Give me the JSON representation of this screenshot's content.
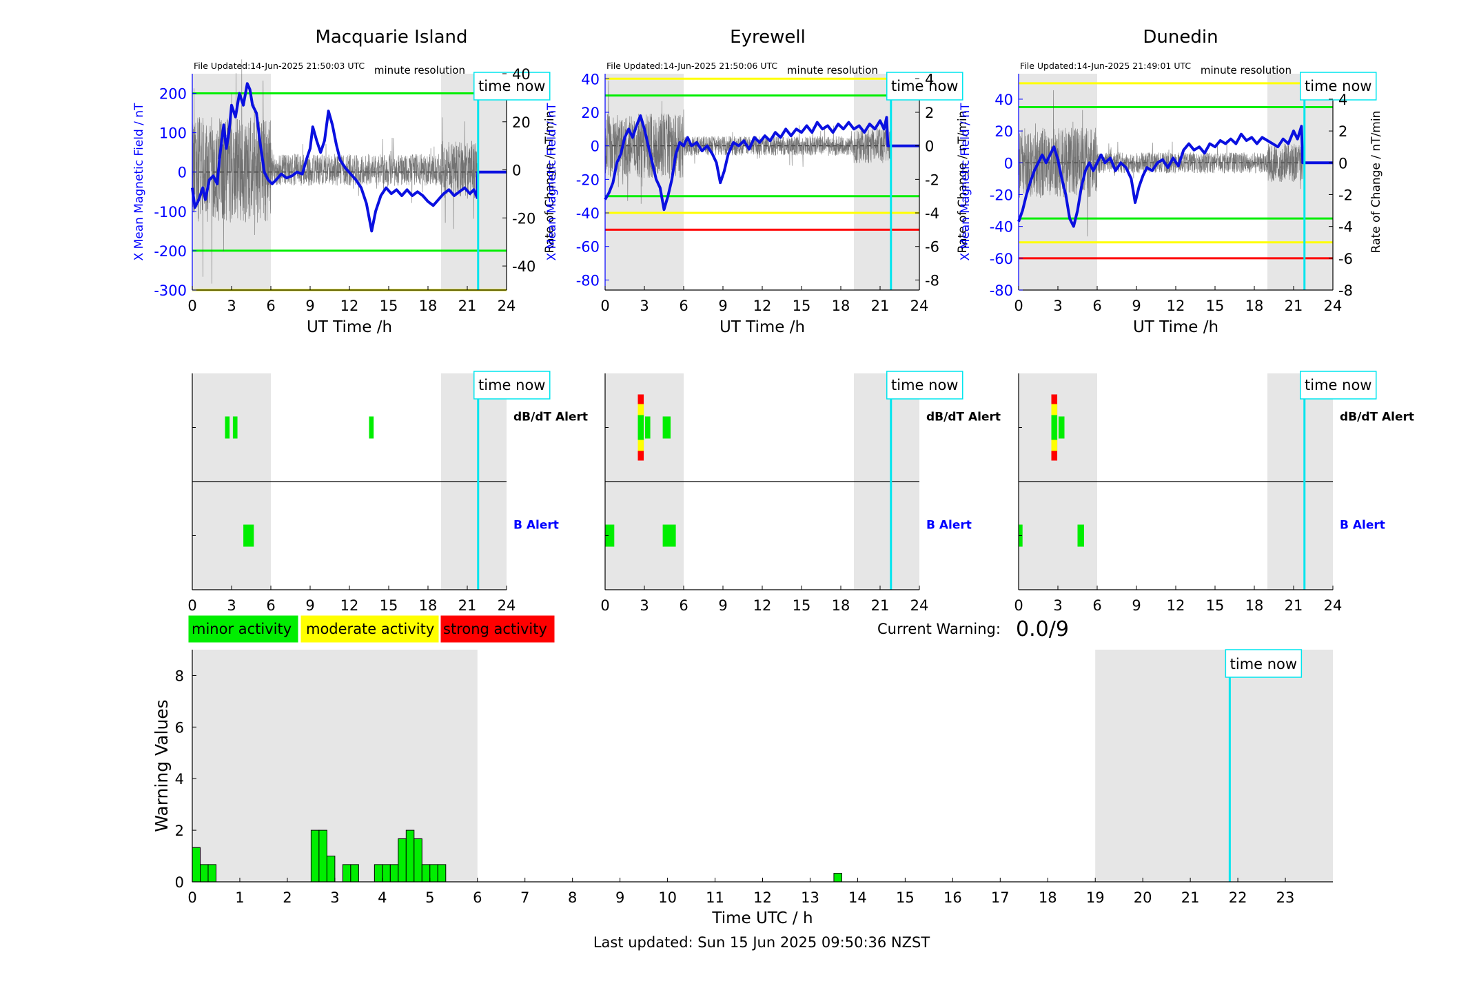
{
  "colors": {
    "shade": "#e6e6e6",
    "field": "#0a10e0",
    "rate": "#555555",
    "minor": "#00ee00",
    "moderate": "#ffff00",
    "strong": "#ff0000",
    "now": "#00e5ee",
    "axis_blue": "#0000ff",
    "zero_line": "#000000"
  },
  "now_hour": 21.83,
  "shaded_hours": [
    [
      0,
      6
    ],
    [
      19,
      24
    ]
  ],
  "chart_data": [
    {
      "type": "line",
      "id": "macquarie",
      "title": "Macquarie Island",
      "file_updated": "File Updated:14-Jun-2025 21:50:03 UTC",
      "resolution": "minute resolution",
      "time_now_label": "time now",
      "xlabel": "UT Time /h",
      "ylabel_left": "X Mean Magnetic Field / nT",
      "ylabel_right": "Rate of Change / nT/min",
      "xlim": [
        0,
        24
      ],
      "xticks": [
        "0",
        "3",
        "6",
        "9",
        "12",
        "15",
        "18",
        "21",
        "24"
      ],
      "ylim_left": [
        -300,
        250
      ],
      "yticks_left": [
        "200",
        "100",
        "0",
        "-100",
        "-200",
        "-300"
      ],
      "yticks_left_values": [
        200,
        100,
        0,
        -100,
        -200,
        -300
      ],
      "ylim_right": [
        -50,
        40
      ],
      "yticks_right": [
        "40",
        "20",
        "0",
        "-20",
        "-40"
      ],
      "yticks_right_values": [
        40,
        20,
        0,
        -20,
        -40
      ],
      "thresholds": [
        {
          "value": 200,
          "level": "minor"
        },
        {
          "value": -200,
          "level": "minor"
        },
        {
          "value": -300,
          "level": "moderate"
        }
      ],
      "field_series": [
        [
          0,
          -40
        ],
        [
          0.2,
          -90
        ],
        [
          0.5,
          -70
        ],
        [
          0.8,
          -40
        ],
        [
          1.0,
          -70
        ],
        [
          1.3,
          -20
        ],
        [
          1.6,
          -10
        ],
        [
          1.9,
          -30
        ],
        [
          2.1,
          40
        ],
        [
          2.4,
          120
        ],
        [
          2.6,
          60
        ],
        [
          2.8,
          100
        ],
        [
          3.0,
          170
        ],
        [
          3.3,
          140
        ],
        [
          3.6,
          200
        ],
        [
          3.9,
          170
        ],
        [
          4.2,
          225
        ],
        [
          4.4,
          210
        ],
        [
          4.6,
          170
        ],
        [
          4.9,
          150
        ],
        [
          5.2,
          70
        ],
        [
          5.5,
          0
        ],
        [
          5.8,
          -20
        ],
        [
          6.1,
          -30
        ],
        [
          6.4,
          -20
        ],
        [
          6.8,
          -5
        ],
        [
          7.2,
          -15
        ],
        [
          7.6,
          -10
        ],
        [
          8.0,
          0
        ],
        [
          8.4,
          -5
        ],
        [
          8.7,
          30
        ],
        [
          9.0,
          60
        ],
        [
          9.2,
          115
        ],
        [
          9.5,
          80
        ],
        [
          9.8,
          50
        ],
        [
          10.1,
          80
        ],
        [
          10.4,
          155
        ],
        [
          10.7,
          120
        ],
        [
          11.0,
          70
        ],
        [
          11.3,
          30
        ],
        [
          11.7,
          10
        ],
        [
          12.1,
          -5
        ],
        [
          12.5,
          -20
        ],
        [
          12.9,
          -40
        ],
        [
          13.3,
          -80
        ],
        [
          13.7,
          -150
        ],
        [
          14.0,
          -100
        ],
        [
          14.4,
          -60
        ],
        [
          14.8,
          -40
        ],
        [
          15.2,
          -55
        ],
        [
          15.6,
          -45
        ],
        [
          16.0,
          -60
        ],
        [
          16.4,
          -45
        ],
        [
          16.8,
          -60
        ],
        [
          17.2,
          -50
        ],
        [
          17.6,
          -60
        ],
        [
          18.0,
          -75
        ],
        [
          18.4,
          -85
        ],
        [
          18.8,
          -70
        ],
        [
          19.2,
          -55
        ],
        [
          19.6,
          -45
        ],
        [
          20.0,
          -60
        ],
        [
          20.4,
          -50
        ],
        [
          20.8,
          -40
        ],
        [
          21.2,
          -55
        ],
        [
          21.5,
          -45
        ],
        [
          21.75,
          -65
        ],
        [
          21.8,
          0
        ],
        [
          24,
          0
        ]
      ],
      "rate_amplitude": 40
    },
    {
      "type": "line",
      "id": "eyrewell",
      "title": "Eyrewell",
      "file_updated": "File Updated:14-Jun-2025 21:50:06 UTC",
      "resolution": "minute resolution",
      "time_now_label": "time now",
      "xlabel": "UT Time /h",
      "ylabel_left": "X Mean Magnetic Field / nT",
      "ylabel_right": "Rate of Change / nT/min",
      "xlim": [
        0,
        24
      ],
      "xticks": [
        "0",
        "3",
        "6",
        "9",
        "12",
        "15",
        "18",
        "21",
        "24"
      ],
      "ylim_left": [
        -86,
        43
      ],
      "yticks_left": [
        "40",
        "20",
        "0",
        "-20",
        "-40",
        "-60",
        "-80"
      ],
      "yticks_left_values": [
        40,
        20,
        0,
        -20,
        -40,
        -60,
        -80
      ],
      "ylim_right": [
        -8.6,
        4.3
      ],
      "yticks_right": [
        "4",
        "2",
        "0",
        "-2",
        "-4",
        "-6",
        "-8"
      ],
      "yticks_right_values": [
        4,
        2,
        0,
        -2,
        -4,
        -6,
        -8
      ],
      "thresholds": [
        {
          "value": 40,
          "level": "moderate"
        },
        {
          "value": 30,
          "level": "minor"
        },
        {
          "value": -30,
          "level": "minor"
        },
        {
          "value": -40,
          "level": "moderate"
        },
        {
          "value": -50,
          "level": "strong"
        }
      ],
      "field_series": [
        [
          0,
          -32
        ],
        [
          0.3,
          -28
        ],
        [
          0.6,
          -22
        ],
        [
          0.9,
          -10
        ],
        [
          1.2,
          -5
        ],
        [
          1.5,
          5
        ],
        [
          1.8,
          10
        ],
        [
          2.1,
          5
        ],
        [
          2.4,
          12
        ],
        [
          2.7,
          18
        ],
        [
          3.0,
          10
        ],
        [
          3.3,
          0
        ],
        [
          3.6,
          -10
        ],
        [
          3.9,
          -20
        ],
        [
          4.2,
          -25
        ],
        [
          4.5,
          -38
        ],
        [
          4.8,
          -30
        ],
        [
          5.1,
          -20
        ],
        [
          5.4,
          -5
        ],
        [
          5.7,
          2
        ],
        [
          6.0,
          0
        ],
        [
          6.3,
          5
        ],
        [
          6.6,
          0
        ],
        [
          7.0,
          2
        ],
        [
          7.4,
          -3
        ],
        [
          7.8,
          0
        ],
        [
          8.2,
          -5
        ],
        [
          8.5,
          -10
        ],
        [
          8.8,
          -22
        ],
        [
          9.1,
          -15
        ],
        [
          9.4,
          -5
        ],
        [
          9.8,
          2
        ],
        [
          10.2,
          0
        ],
        [
          10.6,
          3
        ],
        [
          11.0,
          -2
        ],
        [
          11.4,
          5
        ],
        [
          11.8,
          2
        ],
        [
          12.2,
          6
        ],
        [
          12.6,
          3
        ],
        [
          13.0,
          8
        ],
        [
          13.4,
          5
        ],
        [
          13.8,
          10
        ],
        [
          14.2,
          6
        ],
        [
          14.6,
          10
        ],
        [
          15.0,
          8
        ],
        [
          15.4,
          12
        ],
        [
          15.8,
          8
        ],
        [
          16.2,
          14
        ],
        [
          16.6,
          10
        ],
        [
          17.0,
          12
        ],
        [
          17.4,
          8
        ],
        [
          17.8,
          13
        ],
        [
          18.2,
          10
        ],
        [
          18.6,
          14
        ],
        [
          19.0,
          10
        ],
        [
          19.4,
          12
        ],
        [
          19.8,
          8
        ],
        [
          20.2,
          13
        ],
        [
          20.6,
          10
        ],
        [
          21.0,
          15
        ],
        [
          21.3,
          10
        ],
        [
          21.5,
          17
        ],
        [
          21.6,
          0
        ],
        [
          24,
          0
        ]
      ],
      "rate_amplitude": 3.5
    },
    {
      "type": "line",
      "id": "dunedin",
      "title": "Dunedin",
      "file_updated": "File Updated:14-Jun-2025 21:49:01 UTC",
      "resolution": "minute resolution",
      "time_now_label": "time now",
      "xlabel": "UT Time /h",
      "ylabel_left": "X Mean Magnetic Field / nT",
      "ylabel_right": "Rate of Change / nT/min",
      "xlim": [
        0,
        24
      ],
      "xticks": [
        "0",
        "3",
        "6",
        "9",
        "12",
        "15",
        "18",
        "21",
        "24"
      ],
      "ylim_left": [
        -80,
        56
      ],
      "yticks_left": [
        "40",
        "20",
        "0",
        "-20",
        "-40",
        "-60",
        "-80"
      ],
      "yticks_left_values": [
        40,
        20,
        0,
        -20,
        -40,
        -60,
        -80
      ],
      "ylim_right": [
        -8,
        5.6
      ],
      "yticks_right": [
        "4",
        "2",
        "0",
        "-2",
        "-4",
        "-6",
        "-8"
      ],
      "yticks_right_values": [
        4,
        2,
        0,
        -2,
        -4,
        -6,
        -8
      ],
      "thresholds": [
        {
          "value": 50,
          "level": "moderate"
        },
        {
          "value": 35,
          "level": "minor"
        },
        {
          "value": -35,
          "level": "minor"
        },
        {
          "value": -50,
          "level": "moderate"
        },
        {
          "value": -60,
          "level": "strong"
        }
      ],
      "field_series": [
        [
          0,
          -37
        ],
        [
          0.3,
          -30
        ],
        [
          0.6,
          -20
        ],
        [
          0.9,
          -12
        ],
        [
          1.2,
          -5
        ],
        [
          1.5,
          0
        ],
        [
          1.8,
          5
        ],
        [
          2.1,
          0
        ],
        [
          2.4,
          5
        ],
        [
          2.7,
          10
        ],
        [
          3.0,
          2
        ],
        [
          3.3,
          -10
        ],
        [
          3.6,
          -20
        ],
        [
          3.9,
          -35
        ],
        [
          4.2,
          -40
        ],
        [
          4.5,
          -30
        ],
        [
          4.8,
          -15
        ],
        [
          5.1,
          -5
        ],
        [
          5.4,
          0
        ],
        [
          5.7,
          -5
        ],
        [
          6.0,
          0
        ],
        [
          6.3,
          5
        ],
        [
          6.6,
          0
        ],
        [
          7.0,
          3
        ],
        [
          7.4,
          -5
        ],
        [
          7.8,
          0
        ],
        [
          8.2,
          -3
        ],
        [
          8.6,
          -10
        ],
        [
          8.9,
          -25
        ],
        [
          9.2,
          -15
        ],
        [
          9.5,
          -8
        ],
        [
          9.8,
          -3
        ],
        [
          10.2,
          -5
        ],
        [
          10.6,
          0
        ],
        [
          11.0,
          2
        ],
        [
          11.4,
          -3
        ],
        [
          11.8,
          3
        ],
        [
          12.2,
          -2
        ],
        [
          12.6,
          8
        ],
        [
          13.0,
          12
        ],
        [
          13.4,
          8
        ],
        [
          13.8,
          10
        ],
        [
          14.2,
          6
        ],
        [
          14.6,
          12
        ],
        [
          15.0,
          10
        ],
        [
          15.4,
          14
        ],
        [
          15.8,
          12
        ],
        [
          16.2,
          15
        ],
        [
          16.6,
          12
        ],
        [
          17.0,
          18
        ],
        [
          17.4,
          14
        ],
        [
          17.8,
          16
        ],
        [
          18.2,
          12
        ],
        [
          18.6,
          16
        ],
        [
          19.0,
          14
        ],
        [
          19.4,
          12
        ],
        [
          19.8,
          10
        ],
        [
          20.2,
          15
        ],
        [
          20.6,
          12
        ],
        [
          21.0,
          20
        ],
        [
          21.3,
          15
        ],
        [
          21.6,
          23
        ],
        [
          21.7,
          0
        ],
        [
          24,
          0
        ]
      ],
      "rate_amplitude": 4
    },
    {
      "type": "bar",
      "id": "alerts",
      "panels": [
        {
          "station": "macquarie",
          "time_now_label": "time now",
          "row_labels": [
            "dB/dT Alert",
            "B Alert"
          ],
          "xlim": [
            0,
            24
          ],
          "xticks": [
            "0",
            "3",
            "6",
            "9",
            "12",
            "15",
            "18",
            "21",
            "24"
          ],
          "dbdt": [
            {
              "start": 2.5,
              "end": 2.85,
              "level": "minor"
            },
            {
              "start": 3.1,
              "end": 3.45,
              "level": "minor"
            },
            {
              "start": 13.5,
              "end": 13.85,
              "level": "minor"
            }
          ],
          "b": [
            {
              "start": 3.9,
              "end": 4.7,
              "level": "minor"
            }
          ]
        },
        {
          "station": "eyrewell",
          "time_now_label": "time now",
          "row_labels": [
            "dB/dT Alert",
            "B Alert"
          ],
          "xlim": [
            0,
            24
          ],
          "xticks": [
            "0",
            "3",
            "6",
            "9",
            "12",
            "15",
            "18",
            "21",
            "24"
          ],
          "dbdt": [
            {
              "start": 2.5,
              "end": 2.95,
              "level": "strong"
            },
            {
              "start": 3.05,
              "end": 3.45,
              "level": "minor"
            },
            {
              "start": 4.4,
              "end": 5.0,
              "level": "minor"
            }
          ],
          "b": [
            {
              "start": 0,
              "end": 0.7,
              "level": "minor"
            },
            {
              "start": 4.4,
              "end": 5.4,
              "level": "minor"
            }
          ]
        },
        {
          "station": "dunedin",
          "time_now_label": "time now",
          "row_labels": [
            "dB/dT Alert",
            "B Alert"
          ],
          "xlim": [
            0,
            24
          ],
          "xticks": [
            "0",
            "3",
            "6",
            "9",
            "12",
            "15",
            "18",
            "21",
            "24"
          ],
          "dbdt": [
            {
              "start": 2.5,
              "end": 2.95,
              "level": "strong"
            },
            {
              "start": 3.05,
              "end": 3.5,
              "level": "minor"
            }
          ],
          "b": [
            {
              "start": 0,
              "end": 0.3,
              "level": "minor"
            },
            {
              "start": 4.5,
              "end": 5.0,
              "level": "minor"
            }
          ]
        }
      ]
    },
    {
      "type": "bar",
      "id": "warning_values",
      "time_now_label": "time now",
      "xlabel": "Time UTC / h",
      "ylabel": "Warning Values",
      "xlim": [
        0,
        24
      ],
      "ylim": [
        0,
        9
      ],
      "xticks": [
        "0",
        "1",
        "2",
        "3",
        "4",
        "5",
        "6",
        "7",
        "8",
        "9",
        "10",
        "11",
        "12",
        "13",
        "14",
        "15",
        "16",
        "17",
        "18",
        "19",
        "20",
        "21",
        "22",
        "23"
      ],
      "yticks": [
        "0",
        "2",
        "4",
        "6",
        "8"
      ],
      "bin_hours": 0.1667,
      "bars": [
        [
          0.0,
          1.33
        ],
        [
          0.1667,
          0.67
        ],
        [
          0.3333,
          0.67
        ],
        [
          2.5,
          2
        ],
        [
          2.6667,
          2
        ],
        [
          2.8333,
          1
        ],
        [
          3.1667,
          0.67
        ],
        [
          3.3333,
          0.67
        ],
        [
          3.8333,
          0.67
        ],
        [
          4.0,
          0.67
        ],
        [
          4.1667,
          0.67
        ],
        [
          4.3333,
          1.67
        ],
        [
          4.5,
          2
        ],
        [
          4.6667,
          1.67
        ],
        [
          4.8333,
          0.67
        ],
        [
          5.0,
          0.67
        ],
        [
          5.1667,
          0.67
        ],
        [
          13.5,
          0.33
        ]
      ]
    }
  ],
  "legend": {
    "minor": "minor activity",
    "moderate": "moderate activity",
    "strong": "strong activity"
  },
  "current_warning": {
    "label": "Current Warning:",
    "value": "0.0/9"
  },
  "footer": {
    "last_updated": "Last updated: Sun 15 Jun 2025 09:50:36 NZST"
  }
}
